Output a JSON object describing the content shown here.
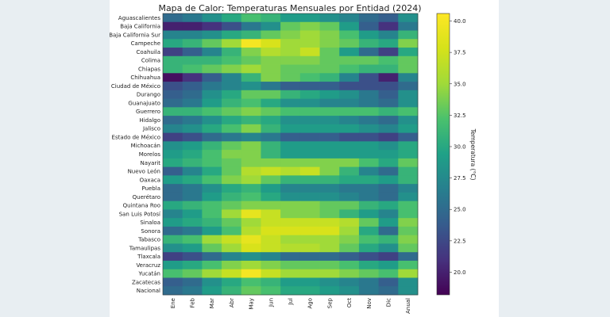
{
  "chart_data": {
    "type": "heatmap",
    "title": "Mapa de Calor: Temperaturas Mensuales por Entidad (2024)",
    "colorbar_label": "Temperatura (°C)",
    "colorbar_range": [
      18.2,
      40.6
    ],
    "colorbar_ticks": [
      "20.0",
      "22.5",
      "25.0",
      "27.5",
      "30.0",
      "32.5",
      "35.0",
      "37.5",
      "40.0"
    ],
    "colorscale": "viridis",
    "x": [
      "Ene",
      "Feb",
      "Mar",
      "Abr",
      "May",
      "Jun",
      "Jul",
      "Ago",
      "Sep",
      "Oct",
      "Nov",
      "Dic",
      "Anual"
    ],
    "y": [
      "Aguascalientes",
      "Baja California",
      "Baja California Sur",
      "Campeche",
      "Coahuila",
      "Colima",
      "Chiapas",
      "Chihuahua",
      "Ciudad de México",
      "Durango",
      "Guanajuato",
      "Guerrero",
      "Hidalgo",
      "Jalisco",
      "Estado de México",
      "Michoacán",
      "Morelos",
      "Nayarit",
      "Nuevo León",
      "Oaxaca",
      "Puebla",
      "Querétaro",
      "Quintana Roo",
      "San Luis Potosí",
      "Sinaloa",
      "Sonora",
      "Tabasco",
      "Tamaulipas",
      "Tlaxcala",
      "Veracruz",
      "Yucatán",
      "Zacatecas",
      "Nacional"
    ],
    "z": [
      [
        25,
        26,
        28,
        30,
        32,
        31,
        29,
        29,
        28,
        27,
        25,
        24,
        28
      ],
      [
        20,
        20,
        21,
        23,
        26,
        28,
        33,
        34,
        33,
        29,
        24,
        21,
        26
      ],
      [
        27,
        27,
        28,
        30,
        31,
        33,
        34,
        35,
        34,
        32,
        29,
        27,
        31
      ],
      [
        30,
        31,
        33,
        35,
        40,
        38,
        35,
        35,
        34,
        33,
        31,
        30,
        34
      ],
      [
        22,
        24,
        27,
        31,
        34,
        36,
        35,
        37,
        33,
        29,
        25,
        22,
        30
      ],
      [
        31,
        31,
        31,
        32,
        33,
        34,
        34,
        34,
        33,
        33,
        33,
        32,
        33
      ],
      [
        31,
        32,
        33,
        34,
        35,
        34,
        33,
        33,
        33,
        32,
        31,
        31,
        33
      ],
      [
        19,
        21,
        24,
        27,
        31,
        34,
        33,
        32,
        31,
        27,
        23,
        20,
        27
      ],
      [
        23,
        24,
        26,
        27,
        28,
        26,
        24,
        24,
        24,
        23,
        23,
        23,
        25
      ],
      [
        24,
        25,
        28,
        30,
        33,
        33,
        31,
        30,
        29,
        28,
        26,
        24,
        28
      ],
      [
        25,
        26,
        29,
        31,
        32,
        30,
        28,
        28,
        27,
        27,
        26,
        25,
        28
      ],
      [
        31,
        31,
        32,
        33,
        34,
        33,
        32,
        32,
        32,
        32,
        32,
        31,
        32
      ],
      [
        25,
        26,
        28,
        30,
        31,
        30,
        28,
        28,
        28,
        27,
        26,
        25,
        28
      ],
      [
        27,
        28,
        30,
        32,
        34,
        31,
        29,
        29,
        29,
        29,
        28,
        27,
        29
      ],
      [
        22,
        23,
        25,
        26,
        27,
        26,
        24,
        24,
        24,
        23,
        23,
        22,
        24
      ],
      [
        28,
        29,
        31,
        33,
        34,
        31,
        29,
        29,
        29,
        29,
        29,
        28,
        30
      ],
      [
        29,
        30,
        32,
        34,
        34,
        31,
        29,
        29,
        29,
        29,
        29,
        29,
        30
      ],
      [
        30,
        31,
        32,
        33,
        34,
        34,
        34,
        34,
        34,
        34,
        32,
        30,
        33
      ],
      [
        24,
        27,
        30,
        33,
        36,
        37,
        36,
        37,
        34,
        31,
        27,
        25,
        31
      ],
      [
        29,
        30,
        32,
        34,
        35,
        33,
        31,
        31,
        31,
        30,
        30,
        29,
        31
      ],
      [
        25,
        26,
        28,
        30,
        31,
        29,
        27,
        27,
        27,
        26,
        26,
        25,
        27
      ],
      [
        25,
        26,
        29,
        31,
        32,
        30,
        28,
        28,
        28,
        27,
        26,
        25,
        28
      ],
      [
        30,
        31,
        32,
        33,
        34,
        34,
        34,
        34,
        33,
        33,
        31,
        30,
        32
      ],
      [
        27,
        29,
        32,
        35,
        39,
        37,
        34,
        34,
        33,
        31,
        29,
        27,
        32
      ],
      [
        29,
        30,
        31,
        33,
        35,
        37,
        37,
        37,
        37,
        36,
        33,
        29,
        34
      ],
      [
        25,
        26,
        29,
        32,
        36,
        38,
        38,
        38,
        38,
        35,
        30,
        25,
        33
      ],
      [
        31,
        32,
        35,
        37,
        39,
        37,
        35,
        35,
        35,
        34,
        32,
        31,
        34
      ],
      [
        28,
        29,
        33,
        35,
        38,
        37,
        36,
        36,
        35,
        33,
        30,
        28,
        33
      ],
      [
        22,
        23,
        25,
        27,
        28,
        27,
        25,
        25,
        25,
        24,
        23,
        22,
        25
      ],
      [
        29,
        30,
        32,
        34,
        35,
        34,
        33,
        33,
        33,
        32,
        30,
        29,
        32
      ],
      [
        32,
        33,
        35,
        37,
        40,
        37,
        35,
        35,
        35,
        34,
        33,
        32,
        35
      ],
      [
        24,
        25,
        28,
        30,
        32,
        31,
        29,
        29,
        28,
        27,
        26,
        24,
        28
      ],
      [
        25,
        26,
        29,
        31,
        33,
        32,
        30,
        30,
        29,
        28,
        26,
        25,
        28
      ]
    ]
  }
}
